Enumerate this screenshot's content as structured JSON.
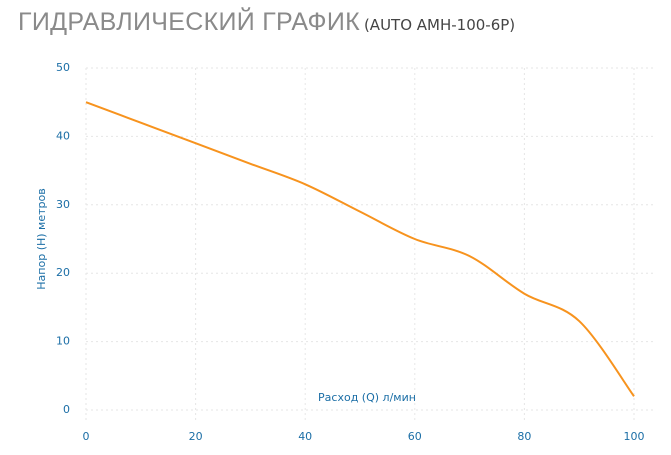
{
  "chart_data": {
    "type": "line",
    "title": "ГИДРАВЛИЧЕСКИЙ ГРАФИК",
    "subtitle": "(AUTO AMH-100-6P)",
    "x_label": "Расход (Q) л/мин",
    "y_label": "Напор (H) метров",
    "x": [
      0,
      10,
      20,
      30,
      40,
      50,
      60,
      70,
      80,
      90,
      100
    ],
    "series": [
      {
        "name": "AUTO AMH-100-6P",
        "color": "#f7931e",
        "values": [
          45,
          42,
          39,
          36,
          33,
          29,
          25,
          22.5,
          17,
          13,
          2
        ]
      }
    ],
    "xlim": [
      0,
      100
    ],
    "xticks": [
      0,
      20,
      40,
      60,
      80,
      100
    ],
    "ylim": [
      0,
      50
    ],
    "yticks": [
      0,
      10,
      20,
      30,
      40,
      50
    ],
    "grid": true
  }
}
